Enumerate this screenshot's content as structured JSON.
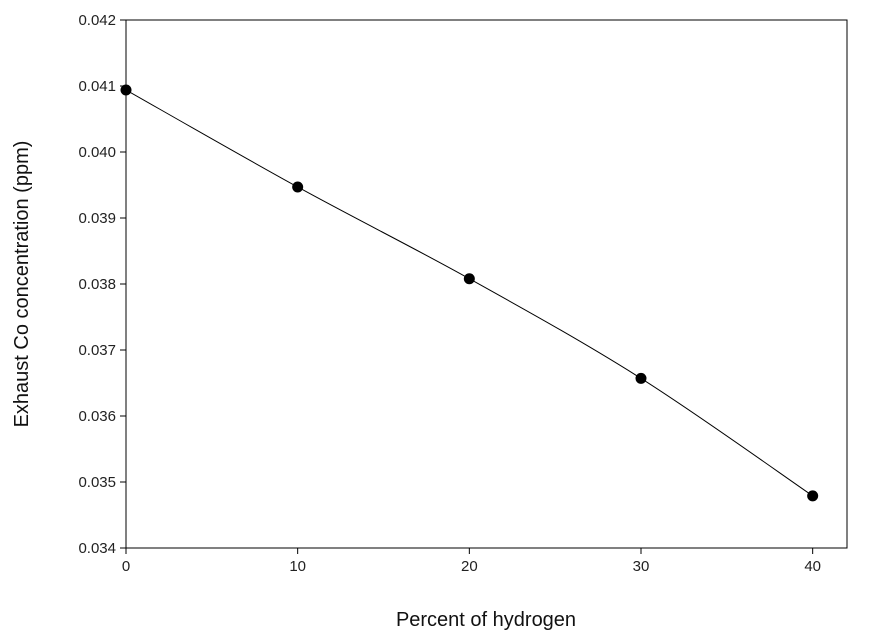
{
  "chart_data": {
    "type": "line",
    "title": "",
    "xlabel": "Percent of hydrogen",
    "ylabel": "Exhaust Co concentration (ppm)",
    "xlim": [
      0,
      42
    ],
    "ylim": [
      0.034,
      0.042
    ],
    "xticks": [
      0,
      10,
      20,
      30,
      40
    ],
    "xtick_labels": [
      "0",
      "10",
      "20",
      "30",
      "40"
    ],
    "yticks": [
      0.034,
      0.035,
      0.036,
      0.037,
      0.038,
      0.039,
      0.04,
      0.041,
      0.042
    ],
    "ytick_labels": [
      "0.034",
      "0.035",
      "0.036",
      "0.037",
      "0.038",
      "0.039",
      "0.040",
      "0.041",
      "0.042"
    ],
    "grid": false,
    "legend": "none",
    "series": [
      {
        "x": [
          0,
          10,
          20,
          30,
          40
        ],
        "y": [
          0.04094,
          0.03947,
          0.03808,
          0.03657,
          0.03479
        ],
        "color": "#000000",
        "marker": "circle"
      }
    ]
  }
}
